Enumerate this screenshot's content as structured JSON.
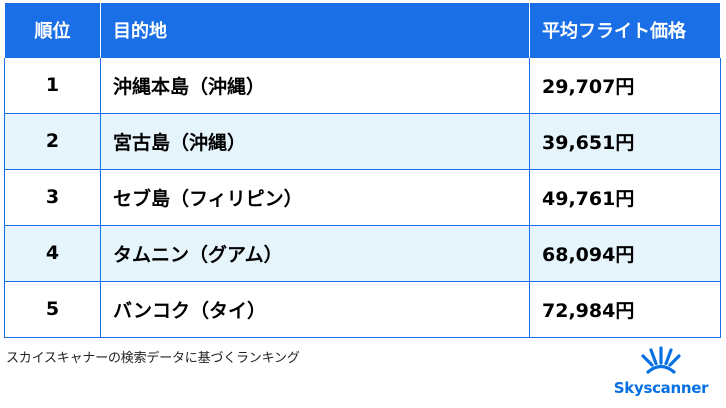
{
  "table": {
    "headers": {
      "rank": "順位",
      "destination": "目的地",
      "price": "平均フライト価格"
    },
    "rows": [
      {
        "rank": "1",
        "destination": "沖縄本島（沖縄）",
        "price": "29,707円"
      },
      {
        "rank": "2",
        "destination": "宮古島（沖縄）",
        "price": "39,651円"
      },
      {
        "rank": "3",
        "destination": "セブ島（フィリピン）",
        "price": "49,761円"
      },
      {
        "rank": "4",
        "destination": "タムニン（グアム）",
        "price": "68,094円"
      },
      {
        "rank": "5",
        "destination": "バンコク（タイ）",
        "price": "72,984円"
      }
    ]
  },
  "footnote": "スカイスキャナーの検索データに基づくランキング",
  "brand": {
    "name": "Skyscanner",
    "icon": "sunrise-logo-icon",
    "color": "#0770e3"
  },
  "colors": {
    "header_bg": "#1a6fe6",
    "alt_row_bg": "#e6f4fc",
    "border": "#1a6fe6"
  }
}
